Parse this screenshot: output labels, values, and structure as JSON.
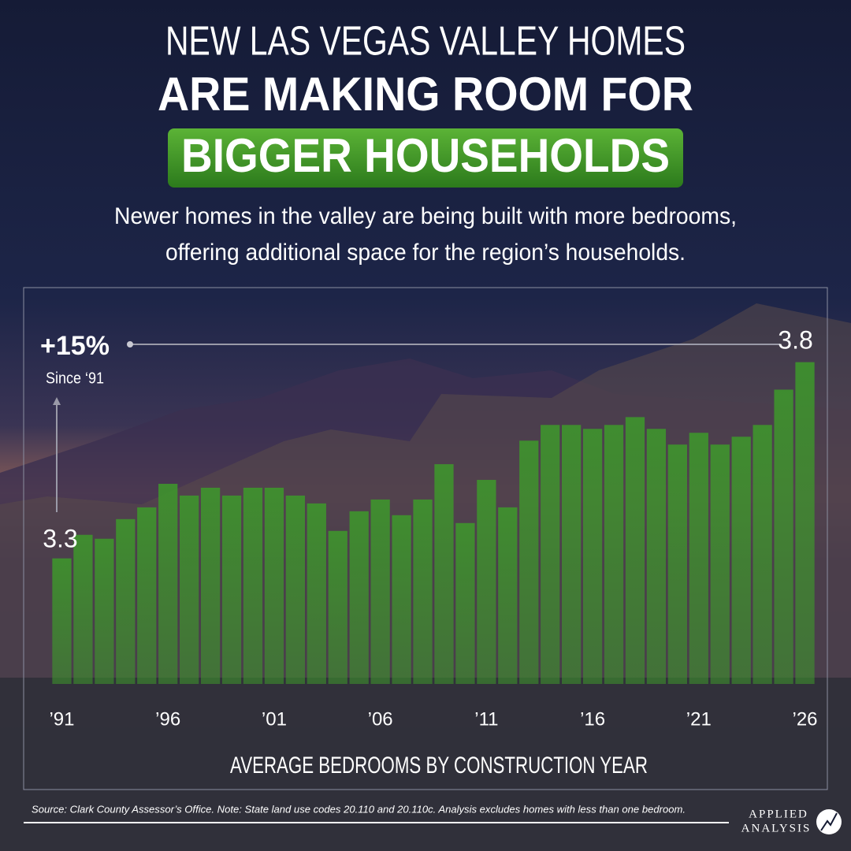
{
  "chart_data": {
    "type": "bar",
    "title_lines": [
      "NEW LAS VEGAS VALLEY HOMES",
      "ARE MAKING ROOM FOR",
      "BIGGER HOUSEHOLDS"
    ],
    "subtitle_lines": [
      "Newer homes in the valley are being built with more bedrooms,",
      "offering additional space for the region’s households."
    ],
    "x_label": "AVERAGE BEDROOMS BY CONSTRUCTION YEAR",
    "annotation": {
      "change": "+15%",
      "since": "Since ‘91"
    },
    "categories": [
      "’91",
      null,
      null,
      null,
      null,
      "’96",
      null,
      null,
      null,
      null,
      "’01",
      null,
      null,
      null,
      null,
      "’06",
      null,
      null,
      null,
      null,
      "’11",
      null,
      null,
      null,
      null,
      "’16",
      null,
      null,
      null,
      null,
      "’21",
      null,
      null,
      null,
      null,
      "’26"
    ],
    "values": [
      3.3,
      3.36,
      3.35,
      3.4,
      3.43,
      3.49,
      3.46,
      3.48,
      3.46,
      3.48,
      3.48,
      3.46,
      3.44,
      3.37,
      3.42,
      3.45,
      3.41,
      3.45,
      3.54,
      3.39,
      3.5,
      3.43,
      3.6,
      3.64,
      3.64,
      3.63,
      3.64,
      3.66,
      3.63,
      3.59,
      3.62,
      3.59,
      3.61,
      3.64,
      3.73,
      3.8
    ],
    "color": "#3d9a2a",
    "ylim": [
      2.98,
      3.99
    ],
    "source": "Source: Clark County Assessor’s Office. Note: State land use codes 20.110 and 20.110c. Analysis excludes homes with less than one bedroom.",
    "logo": [
      "APPLIED",
      "ANALYSIS"
    ]
  }
}
